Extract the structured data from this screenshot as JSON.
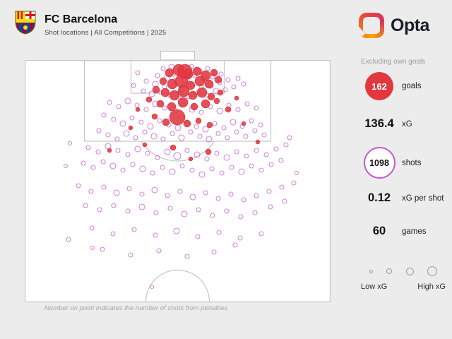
{
  "header": {
    "title": "FC Barcelona",
    "subtitle": "Shot locations | All Competitions | 2025"
  },
  "brand": {
    "wordmark": "Opta"
  },
  "panel": {
    "disclaimer": "Excluding own goals",
    "stats": [
      {
        "value": "162",
        "label": "goals",
        "display": "goal-badge"
      },
      {
        "value": "136.4",
        "label": "xG",
        "display": "plain"
      },
      {
        "value": "1098",
        "label": "shots",
        "display": "shot-badge"
      },
      {
        "value": "0.12",
        "label": "xG per shot",
        "display": "plain"
      },
      {
        "value": "60",
        "label": "games",
        "display": "plain"
      }
    ],
    "legend": {
      "low_label": "Low xG",
      "high_label": "High xG",
      "dot_diameters": [
        5,
        8,
        11,
        14
      ]
    }
  },
  "caption": "Number on point indicates the number of shots from penalties",
  "colors": {
    "background": "#ececec",
    "pitch_fill": "#ffffff",
    "pitch_line": "#c5c5c5",
    "goal_red": "#e2373f",
    "shot_purple": "#c05ecb",
    "text_dark": "#141414",
    "text_gray": "#9b9b9b"
  },
  "chart_data": {
    "type": "scatter",
    "title": "FC Barcelona shot locations — All Competitions 2025",
    "x_range": [
      0,
      433
    ],
    "y_range": [
      -13,
      343
    ],
    "point_format": [
      "x",
      "y",
      "radius"
    ],
    "summary": {
      "goals": 162,
      "xG": 136.4,
      "shots": 1098,
      "xG_per_shot": 0.12,
      "games": 60
    },
    "series": [
      {
        "name": "shots",
        "marker": "ring",
        "color": "#c05ecb",
        "points": [
          [
            196,
            12,
            3
          ],
          [
            208,
            10,
            4
          ],
          [
            222,
            14,
            3
          ],
          [
            236,
            9,
            3
          ],
          [
            247,
            16,
            4
          ],
          [
            259,
            12,
            3
          ],
          [
            270,
            18,
            3
          ],
          [
            188,
            22,
            3
          ],
          [
            201,
            26,
            4
          ],
          [
            214,
            24,
            3
          ],
          [
            228,
            28,
            5
          ],
          [
            241,
            22,
            3
          ],
          [
            254,
            26,
            4
          ],
          [
            266,
            24,
            3
          ],
          [
            278,
            20,
            3
          ],
          [
            172,
            30,
            3
          ],
          [
            185,
            34,
            4
          ],
          [
            198,
            38,
            3
          ],
          [
            211,
            36,
            3
          ],
          [
            224,
            40,
            4
          ],
          [
            237,
            34,
            3
          ],
          [
            250,
            38,
            3
          ],
          [
            263,
            36,
            4
          ],
          [
            276,
            32,
            3
          ],
          [
            288,
            28,
            3
          ],
          [
            160,
            18,
            3
          ],
          [
            168,
            44,
            3
          ],
          [
            180,
            48,
            4
          ],
          [
            193,
            46,
            3
          ],
          [
            206,
            50,
            3
          ],
          [
            219,
            48,
            4
          ],
          [
            232,
            52,
            3
          ],
          [
            245,
            46,
            3
          ],
          [
            258,
            50,
            3
          ],
          [
            271,
            44,
            4
          ],
          [
            284,
            42,
            3
          ],
          [
            296,
            38,
            3
          ],
          [
            154,
            36,
            3
          ],
          [
            302,
            26,
            3
          ],
          [
            310,
            34,
            3
          ],
          [
            120,
            60,
            3
          ],
          [
            133,
            66,
            3
          ],
          [
            146,
            58,
            4
          ],
          [
            159,
            64,
            3
          ],
          [
            172,
            70,
            3
          ],
          [
            185,
            62,
            4
          ],
          [
            198,
            68,
            3
          ],
          [
            211,
            72,
            5
          ],
          [
            224,
            64,
            3
          ],
          [
            237,
            70,
            4
          ],
          [
            250,
            74,
            3
          ],
          [
            263,
            66,
            3
          ],
          [
            276,
            72,
            4
          ],
          [
            289,
            64,
            3
          ],
          [
            302,
            70,
            3
          ],
          [
            315,
            62,
            3
          ],
          [
            328,
            68,
            3
          ],
          [
            112,
            78,
            3
          ],
          [
            126,
            84,
            3
          ],
          [
            139,
            90,
            4
          ],
          [
            152,
            82,
            3
          ],
          [
            165,
            88,
            3
          ],
          [
            178,
            94,
            4
          ],
          [
            191,
            86,
            3
          ],
          [
            204,
            92,
            3
          ],
          [
            217,
            96,
            4
          ],
          [
            230,
            88,
            3
          ],
          [
            243,
            94,
            3
          ],
          [
            256,
            98,
            4
          ],
          [
            269,
            90,
            3
          ],
          [
            282,
            96,
            3
          ],
          [
            295,
            88,
            4
          ],
          [
            308,
            94,
            3
          ],
          [
            321,
            86,
            3
          ],
          [
            334,
            92,
            3
          ],
          [
            105,
            100,
            3
          ],
          [
            118,
            106,
            3
          ],
          [
            131,
            112,
            3
          ],
          [
            144,
            104,
            4
          ],
          [
            157,
            110,
            3
          ],
          [
            170,
            102,
            3
          ],
          [
            183,
            108,
            4
          ],
          [
            196,
            112,
            3
          ],
          [
            209,
            104,
            3
          ],
          [
            222,
            110,
            4
          ],
          [
            235,
            102,
            3
          ],
          [
            248,
            108,
            3
          ],
          [
            261,
            112,
            4
          ],
          [
            274,
            104,
            3
          ],
          [
            287,
            110,
            3
          ],
          [
            300,
            102,
            3
          ],
          [
            313,
            108,
            3
          ],
          [
            326,
            100,
            3
          ],
          [
            339,
            106,
            3
          ],
          [
            90,
            124,
            3
          ],
          [
            104,
            130,
            3
          ],
          [
            118,
            122,
            4
          ],
          [
            132,
            128,
            3
          ],
          [
            146,
            134,
            3
          ],
          [
            160,
            126,
            4
          ],
          [
            174,
            132,
            3
          ],
          [
            188,
            138,
            3
          ],
          [
            202,
            130,
            4
          ],
          [
            216,
            136,
            5
          ],
          [
            230,
            128,
            3
          ],
          [
            244,
            134,
            4
          ],
          [
            258,
            140,
            3
          ],
          [
            272,
            132,
            3
          ],
          [
            286,
            138,
            4
          ],
          [
            300,
            130,
            3
          ],
          [
            314,
            136,
            3
          ],
          [
            328,
            128,
            3
          ],
          [
            342,
            134,
            3
          ],
          [
            356,
            126,
            3
          ],
          [
            83,
            146,
            3
          ],
          [
            97,
            152,
            3
          ],
          [
            111,
            144,
            3
          ],
          [
            125,
            150,
            4
          ],
          [
            139,
            156,
            3
          ],
          [
            153,
            148,
            3
          ],
          [
            167,
            154,
            4
          ],
          [
            181,
            160,
            3
          ],
          [
            195,
            152,
            3
          ],
          [
            209,
            158,
            4
          ],
          [
            223,
            150,
            3
          ],
          [
            237,
            156,
            3
          ],
          [
            251,
            162,
            4
          ],
          [
            265,
            154,
            3
          ],
          [
            279,
            160,
            3
          ],
          [
            293,
            152,
            3
          ],
          [
            307,
            158,
            4
          ],
          [
            321,
            150,
            3
          ],
          [
            335,
            156,
            3
          ],
          [
            349,
            148,
            3
          ],
          [
            363,
            142,
            3
          ],
          [
            370,
            120,
            3
          ],
          [
            76,
            178,
            3
          ],
          [
            94,
            186,
            3
          ],
          [
            112,
            180,
            3
          ],
          [
            130,
            188,
            4
          ],
          [
            148,
            182,
            3
          ],
          [
            166,
            190,
            3
          ],
          [
            184,
            184,
            4
          ],
          [
            202,
            192,
            3
          ],
          [
            220,
            186,
            3
          ],
          [
            238,
            194,
            4
          ],
          [
            256,
            188,
            3
          ],
          [
            274,
            196,
            3
          ],
          [
            292,
            190,
            3
          ],
          [
            310,
            198,
            3
          ],
          [
            328,
            192,
            3
          ],
          [
            346,
            186,
            3
          ],
          [
            364,
            180,
            3
          ],
          [
            381,
            174,
            3
          ],
          [
            86,
            206,
            3
          ],
          [
            106,
            212,
            3
          ],
          [
            126,
            206,
            3
          ],
          [
            146,
            214,
            3
          ],
          [
            166,
            208,
            4
          ],
          [
            186,
            216,
            3
          ],
          [
            206,
            210,
            3
          ],
          [
            226,
            218,
            4
          ],
          [
            246,
            212,
            3
          ],
          [
            266,
            220,
            3
          ],
          [
            286,
            214,
            3
          ],
          [
            306,
            222,
            3
          ],
          [
            326,
            216,
            3
          ],
          [
            348,
            208,
            3
          ],
          [
            368,
            200,
            3
          ],
          [
            95,
            238,
            3
          ],
          [
            125,
            246,
            3
          ],
          [
            155,
            240,
            3
          ],
          [
            185,
            248,
            3
          ],
          [
            215,
            242,
            4
          ],
          [
            245,
            250,
            3
          ],
          [
            275,
            244,
            3
          ],
          [
            305,
            252,
            3
          ],
          [
            335,
            246,
            3
          ],
          [
            110,
            268,
            3
          ],
          [
            150,
            276,
            3
          ],
          [
            190,
            270,
            3
          ],
          [
            230,
            278,
            3
          ],
          [
            268,
            272,
            3
          ],
          [
            298,
            262,
            3
          ],
          [
            62,
            254,
            3
          ],
          [
            180,
            321,
            2.5
          ],
          [
            96,
            266,
            2.5
          ],
          [
            58,
            150,
            2.5
          ],
          [
            64,
            118,
            2.5
          ],
          [
            385,
            160,
            2.5
          ],
          [
            375,
            110,
            3
          ]
        ]
      },
      {
        "name": "goals",
        "marker": "filled",
        "color": "#e2373f",
        "points": [
          [
            205,
            18,
            6
          ],
          [
            218,
            14,
            8
          ],
          [
            231,
            20,
            7
          ],
          [
            244,
            16,
            6
          ],
          [
            256,
            22,
            7
          ],
          [
            268,
            18,
            5
          ],
          [
            196,
            30,
            5
          ],
          [
            209,
            34,
            7
          ],
          [
            222,
            30,
            9
          ],
          [
            235,
            36,
            6
          ],
          [
            248,
            30,
            7
          ],
          [
            261,
            34,
            6
          ],
          [
            274,
            28,
            5
          ],
          [
            186,
            42,
            5
          ],
          [
            199,
            46,
            6
          ],
          [
            212,
            50,
            7
          ],
          [
            225,
            44,
            8
          ],
          [
            238,
            50,
            6
          ],
          [
            251,
            46,
            7
          ],
          [
            264,
            52,
            5
          ],
          [
            277,
            46,
            4
          ],
          [
            176,
            56,
            4
          ],
          [
            192,
            62,
            5
          ],
          [
            208,
            66,
            6
          ],
          [
            224,
            60,
            7
          ],
          [
            240,
            66,
            5
          ],
          [
            256,
            62,
            6
          ],
          [
            272,
            58,
            4
          ],
          [
            216,
            81,
            11
          ],
          [
            227,
            16,
            10
          ],
          [
            230,
            90,
            5
          ],
          [
            246,
            86,
            4
          ],
          [
            200,
            88,
            5
          ],
          [
            184,
            80,
            4
          ],
          [
            262,
            92,
            4
          ],
          [
            288,
            70,
            4
          ],
          [
            300,
            54,
            3
          ],
          [
            160,
            70,
            3
          ],
          [
            150,
            96,
            3
          ],
          [
            310,
            90,
            3
          ],
          [
            330,
            116,
            3
          ],
          [
            120,
            128,
            3
          ],
          [
            260,
            130,
            4
          ],
          [
            210,
            124,
            4
          ],
          [
            235,
            140,
            3
          ],
          [
            170,
            120,
            3
          ]
        ]
      }
    ]
  }
}
